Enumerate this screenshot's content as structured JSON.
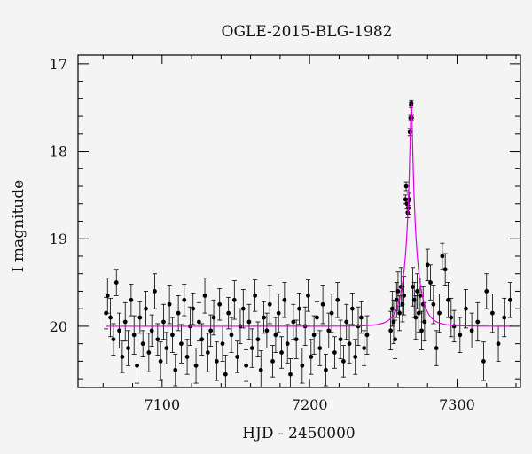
{
  "chart_data": {
    "type": "scatter",
    "title": "OGLE-2015-BLG-1982",
    "xlabel": "HJD - 2450000",
    "ylabel": "I magnitude",
    "xlim": [
      7043,
      7343
    ],
    "ylim": [
      20.7,
      16.9
    ],
    "y_inverted": true,
    "x_ticks": [
      7100,
      7200,
      7300
    ],
    "y_ticks": [
      17,
      18,
      19,
      20
    ],
    "grid": false,
    "legend": "none",
    "colors": {
      "points": "#000000",
      "model": "#e000e0",
      "frame": "#000000"
    },
    "series": [
      {
        "type": "scatter_errorbars",
        "points": [
          [
            7062,
            19.85,
            0.18
          ],
          [
            7063,
            19.65,
            0.2
          ],
          [
            7065,
            19.9,
            0.22
          ],
          [
            7067,
            20.15,
            0.18
          ],
          [
            7069,
            19.5,
            0.15
          ],
          [
            7071,
            20.05,
            0.2
          ],
          [
            7073,
            20.35,
            0.18
          ],
          [
            7075,
            19.95,
            0.22
          ],
          [
            7077,
            20.25,
            0.2
          ],
          [
            7079,
            19.7,
            0.18
          ],
          [
            7081,
            20.1,
            0.22
          ],
          [
            7083,
            20.45,
            0.2
          ],
          [
            7085,
            19.9,
            0.18
          ],
          [
            7087,
            20.2,
            0.15
          ],
          [
            7089,
            19.8,
            0.2
          ],
          [
            7091,
            20.3,
            0.22
          ],
          [
            7093,
            20.05,
            0.18
          ],
          [
            7095,
            19.6,
            0.2
          ],
          [
            7097,
            20.15,
            0.18
          ],
          [
            7099,
            20.4,
            0.22
          ],
          [
            7101,
            19.95,
            0.2
          ],
          [
            7103,
            20.25,
            0.18
          ],
          [
            7105,
            19.75,
            0.22
          ],
          [
            7107,
            20.1,
            0.2
          ],
          [
            7109,
            20.5,
            0.18
          ],
          [
            7111,
            19.85,
            0.2
          ],
          [
            7113,
            20.2,
            0.22
          ],
          [
            7115,
            19.7,
            0.18
          ],
          [
            7117,
            20.35,
            0.2
          ],
          [
            7119,
            20.0,
            0.22
          ],
          [
            7121,
            19.8,
            0.18
          ],
          [
            7123,
            20.45,
            0.2
          ],
          [
            7125,
            19.95,
            0.22
          ],
          [
            7127,
            20.15,
            0.18
          ],
          [
            7129,
            19.65,
            0.2
          ],
          [
            7131,
            20.3,
            0.22
          ],
          [
            7133,
            20.05,
            0.18
          ],
          [
            7135,
            19.9,
            0.2
          ],
          [
            7137,
            20.4,
            0.22
          ],
          [
            7139,
            19.75,
            0.18
          ],
          [
            7141,
            20.2,
            0.2
          ],
          [
            7143,
            20.55,
            0.22
          ],
          [
            7145,
            19.85,
            0.18
          ],
          [
            7147,
            20.1,
            0.2
          ],
          [
            7149,
            19.7,
            0.22
          ],
          [
            7151,
            20.35,
            0.18
          ],
          [
            7153,
            20.0,
            0.2
          ],
          [
            7155,
            19.8,
            0.22
          ],
          [
            7157,
            20.45,
            0.18
          ],
          [
            7159,
            19.95,
            0.2
          ],
          [
            7161,
            20.25,
            0.22
          ],
          [
            7163,
            19.65,
            0.18
          ],
          [
            7165,
            20.15,
            0.2
          ],
          [
            7167,
            20.5,
            0.22
          ],
          [
            7169,
            19.9,
            0.18
          ],
          [
            7171,
            20.05,
            0.2
          ],
          [
            7173,
            19.75,
            0.22
          ],
          [
            7175,
            20.4,
            0.18
          ],
          [
            7177,
            20.1,
            0.2
          ],
          [
            7179,
            19.85,
            0.22
          ],
          [
            7181,
            20.3,
            0.18
          ],
          [
            7183,
            19.7,
            0.2
          ],
          [
            7185,
            20.2,
            0.22
          ],
          [
            7187,
            20.55,
            0.18
          ],
          [
            7189,
            19.95,
            0.2
          ],
          [
            7191,
            20.15,
            0.22
          ],
          [
            7193,
            19.8,
            0.18
          ],
          [
            7195,
            20.45,
            0.2
          ],
          [
            7197,
            20.0,
            0.22
          ],
          [
            7199,
            19.65,
            0.18
          ],
          [
            7201,
            20.35,
            0.2
          ],
          [
            7203,
            20.1,
            0.22
          ],
          [
            7205,
            19.9,
            0.18
          ],
          [
            7207,
            20.25,
            0.2
          ],
          [
            7209,
            19.75,
            0.22
          ],
          [
            7211,
            20.5,
            0.18
          ],
          [
            7213,
            20.05,
            0.2
          ],
          [
            7215,
            19.85,
            0.22
          ],
          [
            7217,
            20.3,
            0.18
          ],
          [
            7219,
            19.7,
            0.2
          ],
          [
            7221,
            20.15,
            0.22
          ],
          [
            7223,
            20.4,
            0.18
          ],
          [
            7225,
            19.95,
            0.2
          ],
          [
            7227,
            20.2,
            0.22
          ],
          [
            7229,
            19.8,
            0.18
          ],
          [
            7231,
            20.35,
            0.2
          ],
          [
            7233,
            20.0,
            0.22
          ],
          [
            7235,
            19.9,
            0.18
          ],
          [
            7237,
            20.25,
            0.2
          ],
          [
            7239,
            20.1,
            0.22
          ],
          [
            7255,
            20.05,
            0.22
          ],
          [
            7256,
            19.8,
            0.2
          ],
          [
            7257,
            19.95,
            0.25
          ],
          [
            7258,
            20.15,
            0.22
          ],
          [
            7259,
            19.7,
            0.2
          ],
          [
            7260,
            19.6,
            0.22
          ],
          [
            7261,
            19.85,
            0.2
          ],
          [
            7262,
            19.55,
            0.22
          ],
          [
            7263,
            19.75,
            0.2
          ],
          [
            7264,
            19.65,
            0.22
          ],
          [
            7265,
            18.55,
            0.05
          ],
          [
            7265.5,
            18.4,
            0.05
          ],
          [
            7266,
            18.6,
            0.06
          ],
          [
            7266.5,
            18.7,
            0.06
          ],
          [
            7267,
            18.65,
            0.07
          ],
          [
            7267.5,
            18.55,
            0.07
          ],
          [
            7268,
            17.78,
            0.04
          ],
          [
            7268.4,
            17.62,
            0.03
          ],
          [
            7268.8,
            17.47,
            0.03
          ],
          [
            7269,
            17.45,
            0.03
          ],
          [
            7269.3,
            17.62,
            0.03
          ],
          [
            7270,
            19.55,
            0.22
          ],
          [
            7271,
            19.7,
            0.2
          ],
          [
            7272,
            19.9,
            0.25
          ],
          [
            7273,
            19.6,
            0.2
          ],
          [
            7274,
            19.85,
            0.22
          ],
          [
            7275,
            19.65,
            0.2
          ],
          [
            7276,
            20.05,
            0.22
          ],
          [
            7277,
            19.75,
            0.2
          ],
          [
            7278,
            19.95,
            0.22
          ],
          [
            7280,
            19.3,
            0.18
          ],
          [
            7282,
            19.5,
            0.2
          ],
          [
            7284,
            19.75,
            0.22
          ],
          [
            7286,
            20.25,
            0.2
          ],
          [
            7288,
            19.85,
            0.22
          ],
          [
            7290,
            19.2,
            0.15
          ],
          [
            7292,
            19.35,
            0.18
          ],
          [
            7294,
            19.7,
            0.2
          ],
          [
            7296,
            19.9,
            0.22
          ],
          [
            7298,
            20.0,
            0.18
          ],
          [
            7302,
            20.1,
            0.2
          ],
          [
            7306,
            19.8,
            0.22
          ],
          [
            7310,
            20.05,
            0.2
          ],
          [
            7314,
            19.95,
            0.22
          ],
          [
            7318,
            20.4,
            0.22
          ],
          [
            7320,
            19.6,
            0.2
          ],
          [
            7324,
            19.85,
            0.22
          ],
          [
            7328,
            20.2,
            0.2
          ],
          [
            7332,
            19.9,
            0.22
          ],
          [
            7336,
            19.7,
            0.2
          ]
        ]
      },
      {
        "type": "model_curve",
        "baseline": 20.0,
        "peak_mag": 17.45,
        "t0": 7269,
        "tE": 8,
        "u0": 0.09,
        "x_range": [
          7062,
          7337
        ]
      }
    ]
  }
}
